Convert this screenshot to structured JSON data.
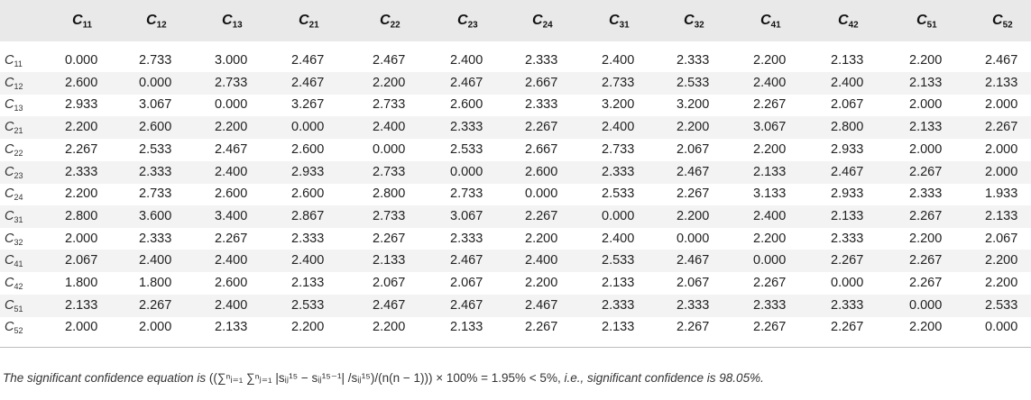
{
  "table": {
    "columns": [
      {
        "sym": "C",
        "sub": "11"
      },
      {
        "sym": "C",
        "sub": "12"
      },
      {
        "sym": "C",
        "sub": "13"
      },
      {
        "sym": "C",
        "sub": "21"
      },
      {
        "sym": "C",
        "sub": "22"
      },
      {
        "sym": "C",
        "sub": "23"
      },
      {
        "sym": "C",
        "sub": "24"
      },
      {
        "sym": "C",
        "sub": "31"
      },
      {
        "sym": "C",
        "sub": "32"
      },
      {
        "sym": "C",
        "sub": "41"
      },
      {
        "sym": "C",
        "sub": "42"
      },
      {
        "sym": "C",
        "sub": "51"
      },
      {
        "sym": "C",
        "sub": "52"
      }
    ],
    "rows": [
      {
        "sym": "C",
        "sub": "11",
        "values": [
          "0.000",
          "2.733",
          "3.000",
          "2.467",
          "2.467",
          "2.400",
          "2.333",
          "2.400",
          "2.333",
          "2.200",
          "2.133",
          "2.200",
          "2.467"
        ]
      },
      {
        "sym": "C",
        "sub": "12",
        "values": [
          "2.600",
          "0.000",
          "2.733",
          "2.467",
          "2.200",
          "2.467",
          "2.667",
          "2.733",
          "2.533",
          "2.400",
          "2.400",
          "2.133",
          "2.133"
        ]
      },
      {
        "sym": "C",
        "sub": "13",
        "values": [
          "2.933",
          "3.067",
          "0.000",
          "3.267",
          "2.733",
          "2.600",
          "2.333",
          "3.200",
          "3.200",
          "2.267",
          "2.067",
          "2.000",
          "2.000"
        ]
      },
      {
        "sym": "C",
        "sub": "21",
        "values": [
          "2.200",
          "2.600",
          "2.200",
          "0.000",
          "2.400",
          "2.333",
          "2.267",
          "2.400",
          "2.200",
          "3.067",
          "2.800",
          "2.133",
          "2.267"
        ]
      },
      {
        "sym": "C",
        "sub": "22",
        "values": [
          "2.267",
          "2.533",
          "2.467",
          "2.600",
          "0.000",
          "2.533",
          "2.667",
          "2.733",
          "2.067",
          "2.200",
          "2.933",
          "2.000",
          "2.000"
        ]
      },
      {
        "sym": "C",
        "sub": "23",
        "values": [
          "2.333",
          "2.333",
          "2.400",
          "2.933",
          "2.733",
          "0.000",
          "2.600",
          "2.333",
          "2.467",
          "2.133",
          "2.467",
          "2.267",
          "2.000"
        ]
      },
      {
        "sym": "C",
        "sub": "24",
        "values": [
          "2.200",
          "2.733",
          "2.600",
          "2.600",
          "2.800",
          "2.733",
          "0.000",
          "2.533",
          "2.267",
          "3.133",
          "2.933",
          "2.333",
          "1.933"
        ]
      },
      {
        "sym": "C",
        "sub": "31",
        "values": [
          "2.800",
          "3.600",
          "3.400",
          "2.867",
          "2.733",
          "3.067",
          "2.267",
          "0.000",
          "2.200",
          "2.400",
          "2.133",
          "2.267",
          "2.133"
        ]
      },
      {
        "sym": "C",
        "sub": "32",
        "values": [
          "2.000",
          "2.333",
          "2.267",
          "2.333",
          "2.267",
          "2.333",
          "2.200",
          "2.400",
          "0.000",
          "2.200",
          "2.333",
          "2.200",
          "2.067"
        ]
      },
      {
        "sym": "C",
        "sub": "41",
        "values": [
          "2.067",
          "2.400",
          "2.400",
          "2.400",
          "2.133",
          "2.467",
          "2.400",
          "2.533",
          "2.467",
          "0.000",
          "2.267",
          "2.267",
          "2.200"
        ]
      },
      {
        "sym": "C",
        "sub": "42",
        "values": [
          "1.800",
          "1.800",
          "2.600",
          "2.133",
          "2.067",
          "2.067",
          "2.200",
          "2.133",
          "2.067",
          "2.267",
          "0.000",
          "2.267",
          "2.200"
        ]
      },
      {
        "sym": "C",
        "sub": "51",
        "values": [
          "2.133",
          "2.267",
          "2.400",
          "2.533",
          "2.467",
          "2.467",
          "2.467",
          "2.333",
          "2.333",
          "2.333",
          "2.333",
          "0.000",
          "2.533"
        ]
      },
      {
        "sym": "C",
        "sub": "52",
        "values": [
          "2.000",
          "2.000",
          "2.133",
          "2.200",
          "2.200",
          "2.133",
          "2.267",
          "2.133",
          "2.267",
          "2.267",
          "2.267",
          "2.200",
          "0.000"
        ]
      }
    ]
  },
  "footnote": {
    "prefix": "The significant confidence equation is ",
    "formula": "((∑ⁿᵢ₌₁ ∑ⁿⱼ₌₁ |sᵢⱼ¹⁵ − sᵢⱼ¹⁵⁻¹| /sᵢⱼ¹⁵)/(n(n − 1))) × 100% = 1.95% < 5%,",
    "suffix": " i.e., significant confidence is 98.05%."
  }
}
